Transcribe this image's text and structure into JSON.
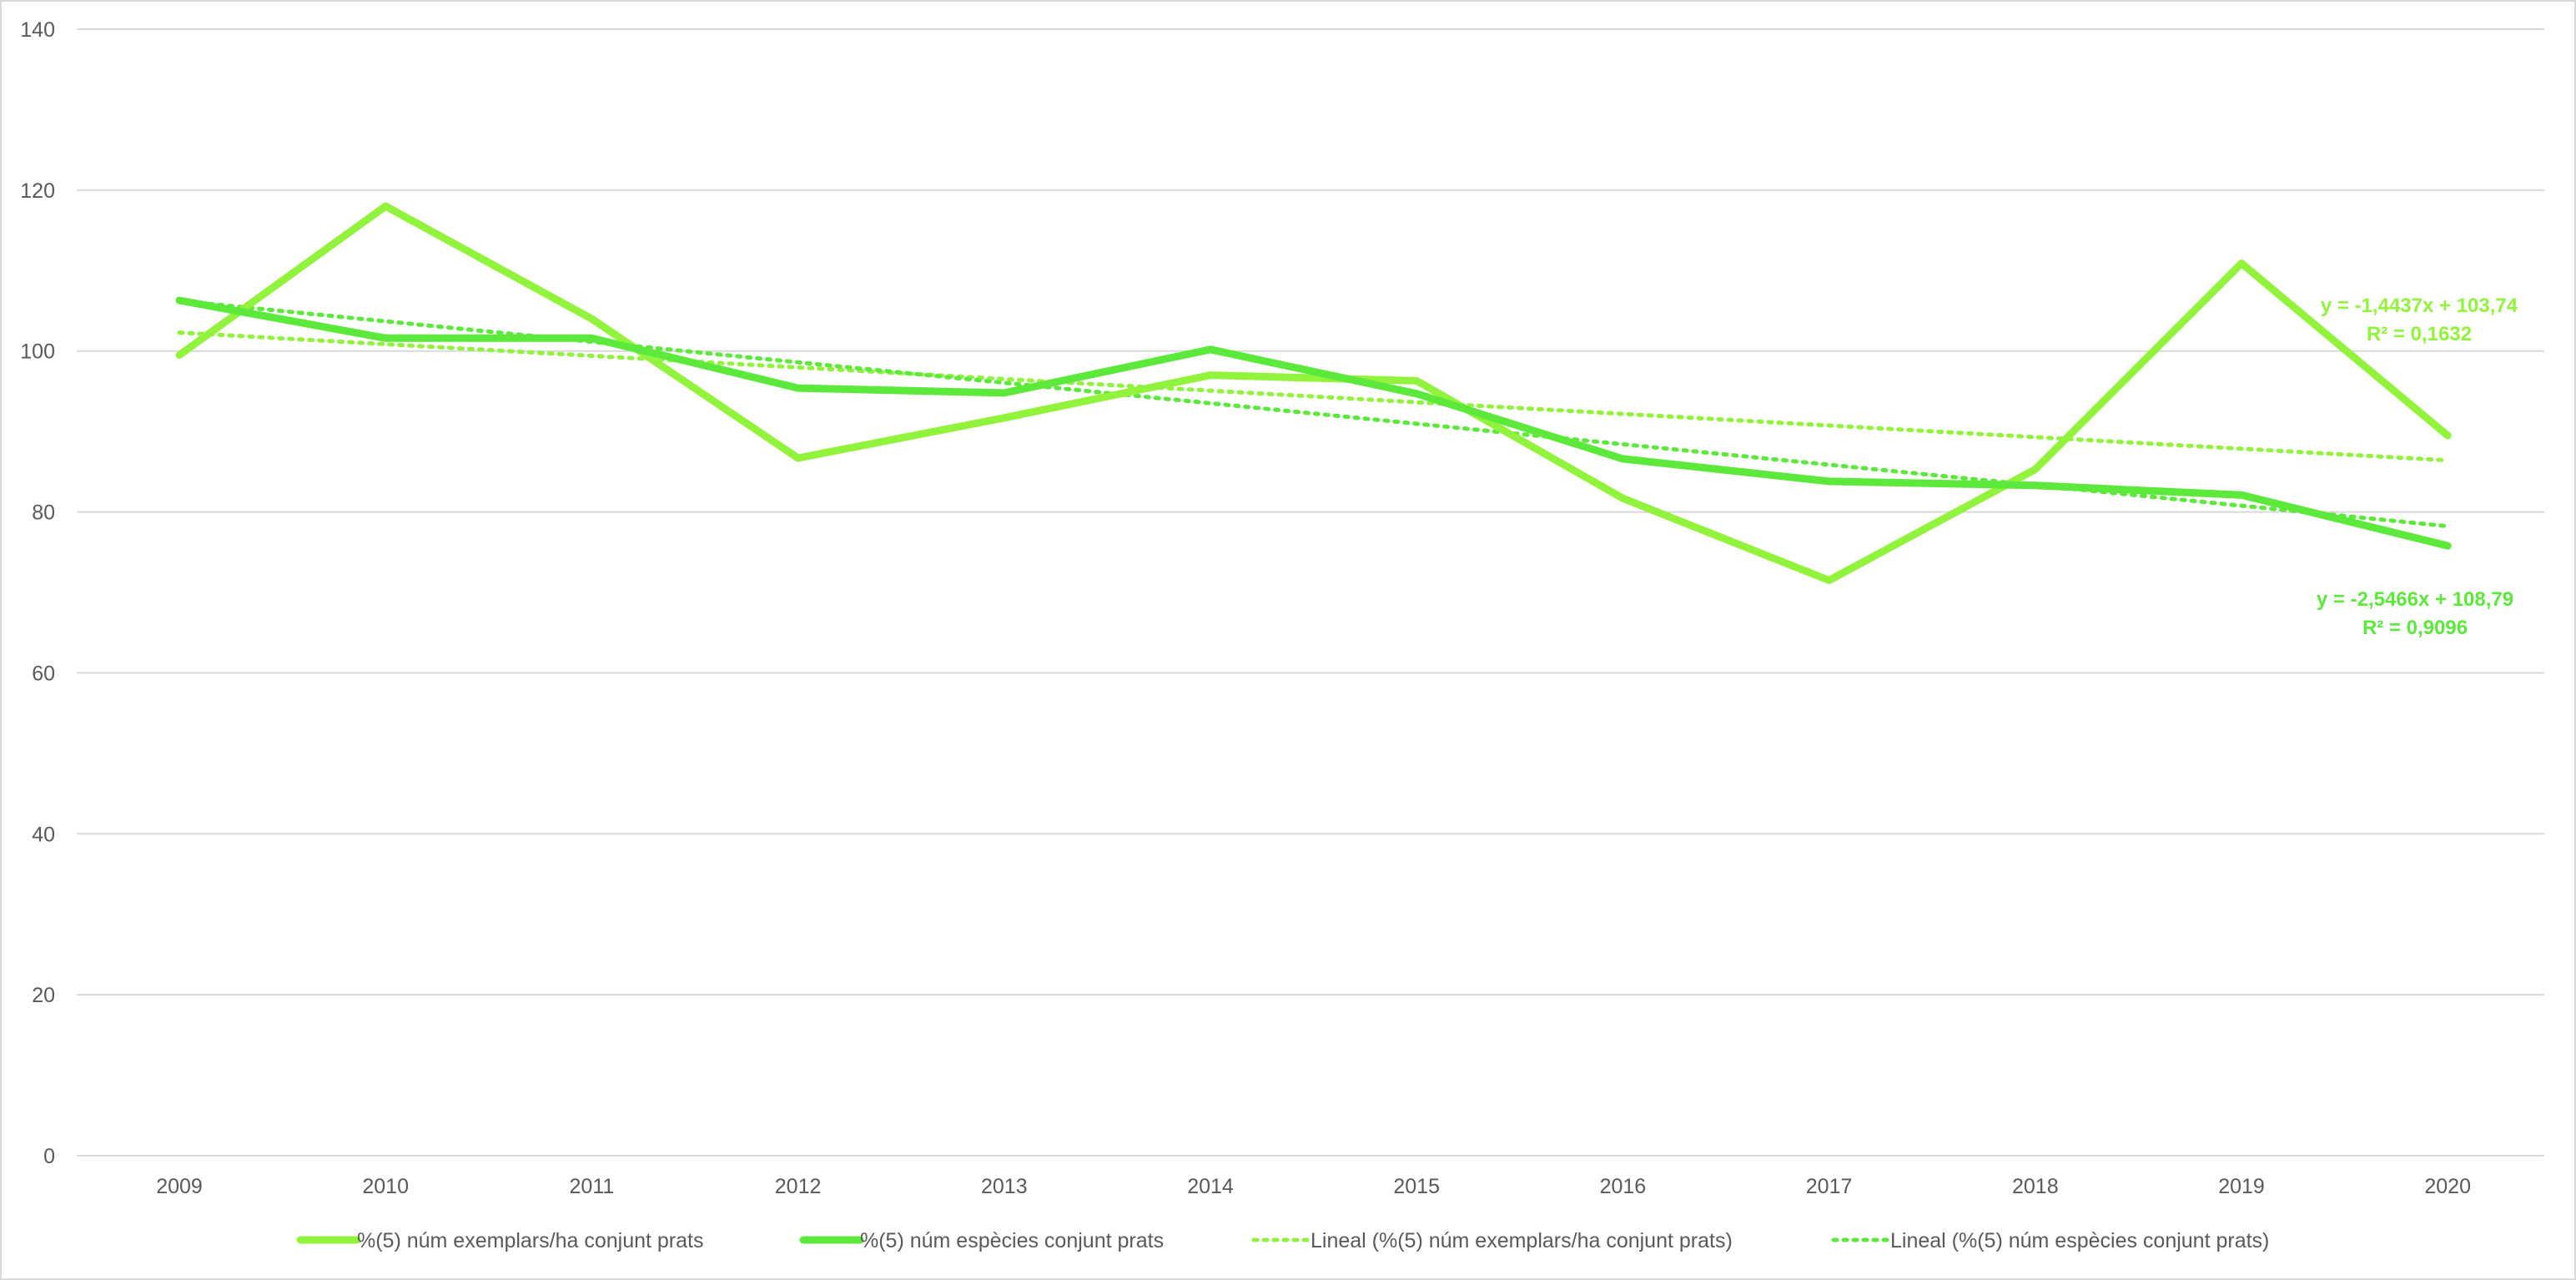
{
  "chart_data": {
    "type": "line",
    "title": "",
    "xlabel": "",
    "ylabel": "",
    "categories": [
      "2009",
      "2010",
      "2011",
      "2012",
      "2013",
      "2014",
      "2015",
      "2016",
      "2017",
      "2018",
      "2019",
      "2020"
    ],
    "ylim": [
      0,
      140
    ],
    "yticks": [
      "0",
      "20",
      "40",
      "60",
      "80",
      "100",
      "120",
      "140"
    ],
    "grid": true,
    "legend_position": "bottom",
    "series": [
      {
        "name": "%(5) núm exemplars/ha conjunt prats",
        "color": "#92f33c",
        "style": "solid",
        "values": [
          99.5,
          118.0,
          104.0,
          86.7,
          91.7,
          97.0,
          96.3,
          81.7,
          71.5,
          85.3,
          110.9,
          89.5
        ]
      },
      {
        "name": "%(5) núm espècies conjunt prats",
        "color": "#5ce93c",
        "style": "solid",
        "values": [
          106.3,
          101.6,
          101.6,
          95.4,
          94.8,
          100.2,
          94.7,
          86.6,
          83.8,
          83.3,
          82.1,
          75.8
        ]
      },
      {
        "name": "Lineal (%(5) núm exemplars/ha conjunt prats)",
        "color": "#92f33c",
        "style": "dotted",
        "trend": {
          "slope": -1.4437,
          "intercept": 103.74
        }
      },
      {
        "name": "Lineal (%(5) núm espècies conjunt prats)",
        "color": "#5ce93c",
        "style": "dotted",
        "trend": {
          "slope": -2.5466,
          "intercept": 108.79
        }
      }
    ],
    "annotations": [
      {
        "series": 0,
        "equation": "y = -1,4437x + 103,74",
        "r2": "R² = 0,1632",
        "color": "#92f33c"
      },
      {
        "series": 1,
        "equation": "y = -2,5466x + 108,79",
        "r2": "R² = 0,9096",
        "color": "#5ce93c"
      }
    ]
  }
}
